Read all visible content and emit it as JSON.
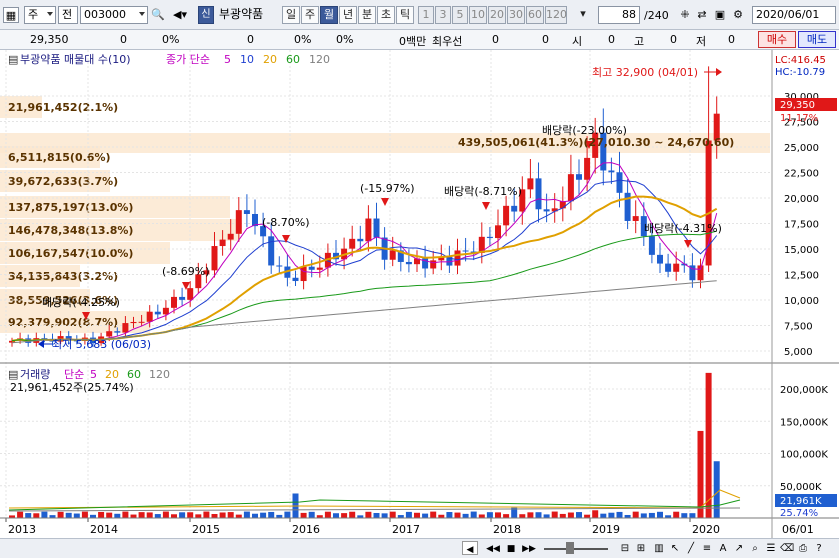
{
  "toolbar": {
    "type_select": "주",
    "market_select": "전",
    "code": "003000",
    "stock_badge": "신",
    "stock_name": "부광약품",
    "periods": [
      {
        "label": "일",
        "active": false
      },
      {
        "label": "주",
        "active": false
      },
      {
        "label": "월",
        "active": true
      },
      {
        "label": "년",
        "active": false
      },
      {
        "label": "분",
        "active": false
      },
      {
        "label": "초",
        "active": false
      },
      {
        "label": "틱",
        "active": false
      }
    ],
    "intervals": [
      "1",
      "3",
      "5",
      "10",
      "20",
      "30",
      "60",
      "120"
    ],
    "count": "88",
    "total": "/240",
    "date": "2020/06/01"
  },
  "info": {
    "price": "29,350",
    "change": "0",
    "change_pct": "0%",
    "vol1": "0",
    "vol1_pct": "0%",
    "vol2": "0%",
    "unit": "0백만",
    "best_label": "최우선",
    "best1": "0",
    "best2": "0",
    "open_label": "시",
    "open": "0",
    "high_label": "고",
    "high": "0",
    "low_label": "저",
    "low": "0",
    "buy": "매수",
    "sell": "매도"
  },
  "price_panel": {
    "title": "부광약품 매물대 수(10)",
    "ma_label": "종가 단순",
    "ma_periods": [
      "5",
      "10",
      "20",
      "60",
      "120"
    ],
    "ma_colors": [
      "#c000c0",
      "#1f3fd0",
      "#e0a000",
      "#1a9a1a",
      "#808080"
    ],
    "lc": "LC:416.45",
    "hc": "HC:-10.79",
    "current_price": "29,350",
    "current_pct": "11.17%",
    "y_ticks": [
      "30,000",
      "27,500",
      "25,000",
      "22,500",
      "20,000",
      "17,500",
      "15,000",
      "12,500",
      "10,000",
      "7,500",
      "5,000"
    ],
    "high_note": "최고 32,900 (04/01)",
    "low_note": "최저 5,683 (06/03)",
    "dividend_range_note": "439,505,061(41.3%)(27,010.30 ~ 24,670.60)",
    "profile": [
      {
        "label": "21,961,452(2.1%)"
      },
      {
        "label": "6,511,815(0.6%)"
      },
      {
        "label": "39,672,633(3.7%)"
      },
      {
        "label": "137,875,197(13.0%)"
      },
      {
        "label": "146,478,348(13.8%)"
      },
      {
        "label": "106,167,547(10.0%)"
      },
      {
        "label": "34,135,843(3.2%)"
      },
      {
        "label": "38,559,526(3.6%)"
      },
      {
        "label": "92,379,902(8.7%)"
      }
    ],
    "annotations": [
      "배당락(-23.00%)",
      "(-15.97%)",
      "배당락(-8.71%)",
      "(-8.70%)",
      "(-8.69%)",
      "배당락(-4.25%)",
      "배당락(-4.31%)"
    ]
  },
  "volume_panel": {
    "title": "거래량",
    "ma_label": "단순",
    "ma_periods": [
      "5",
      "20",
      "60",
      "120"
    ],
    "ma_colors": [
      "#c000c0",
      "#e0a000",
      "#1a9a1a",
      "#808080"
    ],
    "current": "21,961,452주(25.74%)",
    "y_ticks": [
      "200,000K",
      "150,000K",
      "100,000K",
      "50,000K"
    ],
    "current_vol": "21,961K",
    "current_pct": "25.74%"
  },
  "x_axis": {
    "labels": [
      "2013",
      "2014",
      "2015",
      "2016",
      "2017",
      "2018",
      "2019",
      "2020"
    ],
    "current": "06/01"
  }
}
